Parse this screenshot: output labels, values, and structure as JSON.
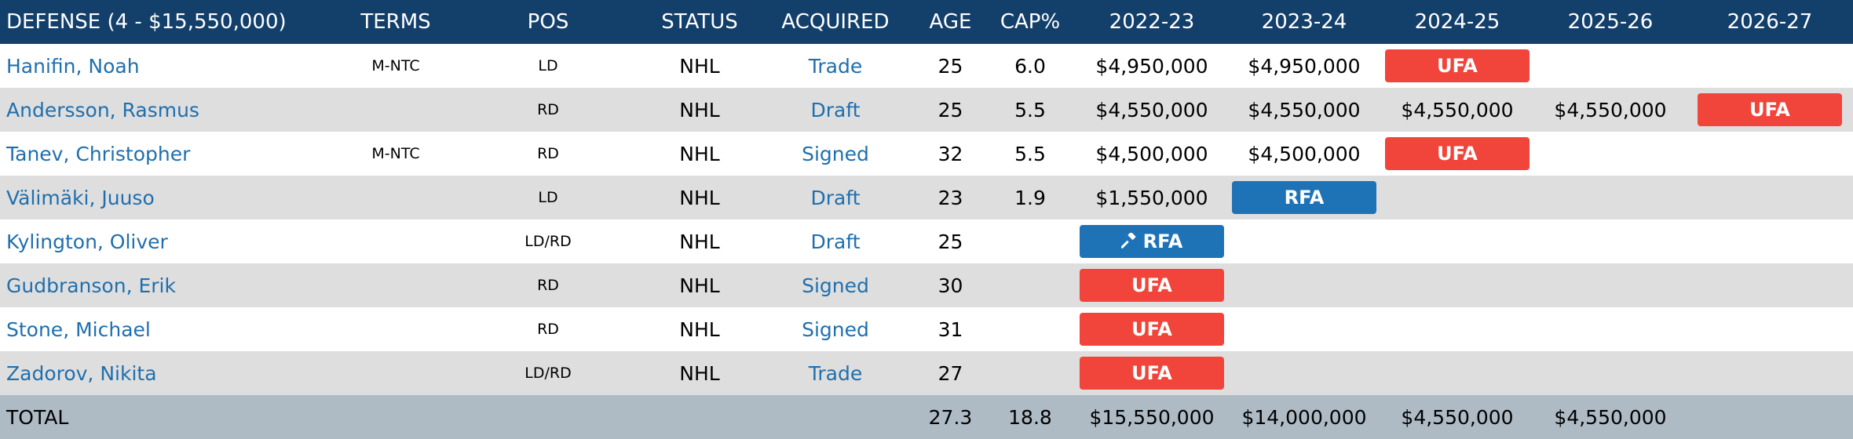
{
  "header": {
    "title": "DEFENSE (4 - $15,550,000)",
    "terms": "TERMS",
    "pos": "POS",
    "status": "STATUS",
    "acquired": "ACQUIRED",
    "age": "AGE",
    "cap_pct": "CAP%",
    "years": [
      "2022-23",
      "2023-24",
      "2024-25",
      "2025-26",
      "2026-27"
    ]
  },
  "colors": {
    "header_bg": "#133f6b",
    "link": "#1f6fae",
    "ufa_badge": "#f1443a",
    "rfa_badge": "#1e73b7",
    "alt_row": "#dedede",
    "total_bg": "#aebbc5"
  },
  "players": [
    {
      "name": "Hanifin, Noah",
      "terms": "M-NTC",
      "pos": "LD",
      "status": "NHL",
      "acquired": "Trade",
      "age": "25",
      "cap": "6.0",
      "years": [
        {
          "type": "text",
          "value": "$4,950,000"
        },
        {
          "type": "text",
          "value": "$4,950,000"
        },
        {
          "type": "badge",
          "kind": "ufa",
          "value": "UFA"
        },
        {
          "type": "empty"
        },
        {
          "type": "empty"
        }
      ]
    },
    {
      "name": "Andersson, Rasmus",
      "terms": "",
      "pos": "RD",
      "status": "NHL",
      "acquired": "Draft",
      "age": "25",
      "cap": "5.5",
      "years": [
        {
          "type": "text",
          "value": "$4,550,000"
        },
        {
          "type": "text",
          "value": "$4,550,000"
        },
        {
          "type": "text",
          "value": "$4,550,000"
        },
        {
          "type": "text",
          "value": "$4,550,000"
        },
        {
          "type": "badge",
          "kind": "ufa",
          "value": "UFA"
        }
      ]
    },
    {
      "name": "Tanev, Christopher",
      "terms": "M-NTC",
      "pos": "RD",
      "status": "NHL",
      "acquired": "Signed",
      "age": "32",
      "cap": "5.5",
      "years": [
        {
          "type": "text",
          "value": "$4,500,000"
        },
        {
          "type": "text",
          "value": "$4,500,000"
        },
        {
          "type": "badge",
          "kind": "ufa",
          "value": "UFA"
        },
        {
          "type": "empty"
        },
        {
          "type": "empty"
        }
      ]
    },
    {
      "name": "Välimäki, Juuso",
      "terms": "",
      "pos": "LD",
      "status": "NHL",
      "acquired": "Draft",
      "age": "23",
      "cap": "1.9",
      "years": [
        {
          "type": "text",
          "value": "$1,550,000"
        },
        {
          "type": "badge",
          "kind": "rfa",
          "value": "RFA"
        },
        {
          "type": "empty"
        },
        {
          "type": "empty"
        },
        {
          "type": "empty"
        }
      ]
    },
    {
      "name": "Kylington, Oliver",
      "terms": "",
      "pos": "LD/RD",
      "status": "NHL",
      "acquired": "Draft",
      "age": "25",
      "cap": "",
      "years": [
        {
          "type": "badge",
          "kind": "rfa",
          "value": "RFA",
          "icon": "gavel-icon"
        },
        {
          "type": "empty"
        },
        {
          "type": "empty"
        },
        {
          "type": "empty"
        },
        {
          "type": "empty"
        }
      ]
    },
    {
      "name": "Gudbranson, Erik",
      "terms": "",
      "pos": "RD",
      "status": "NHL",
      "acquired": "Signed",
      "age": "30",
      "cap": "",
      "years": [
        {
          "type": "badge",
          "kind": "ufa",
          "value": "UFA"
        },
        {
          "type": "empty"
        },
        {
          "type": "empty"
        },
        {
          "type": "empty"
        },
        {
          "type": "empty"
        }
      ]
    },
    {
      "name": "Stone, Michael",
      "terms": "",
      "pos": "RD",
      "status": "NHL",
      "acquired": "Signed",
      "age": "31",
      "cap": "",
      "years": [
        {
          "type": "badge",
          "kind": "ufa",
          "value": "UFA"
        },
        {
          "type": "empty"
        },
        {
          "type": "empty"
        },
        {
          "type": "empty"
        },
        {
          "type": "empty"
        }
      ]
    },
    {
      "name": "Zadorov, Nikita",
      "terms": "",
      "pos": "LD/RD",
      "status": "NHL",
      "acquired": "Trade",
      "age": "27",
      "cap": "",
      "years": [
        {
          "type": "badge",
          "kind": "ufa",
          "value": "UFA"
        },
        {
          "type": "empty"
        },
        {
          "type": "empty"
        },
        {
          "type": "empty"
        },
        {
          "type": "empty"
        }
      ]
    }
  ],
  "total": {
    "label": "TOTAL",
    "age": "27.3",
    "cap": "18.8",
    "years": [
      "$15,550,000",
      "$14,000,000",
      "$4,550,000",
      "$4,550,000",
      ""
    ]
  }
}
